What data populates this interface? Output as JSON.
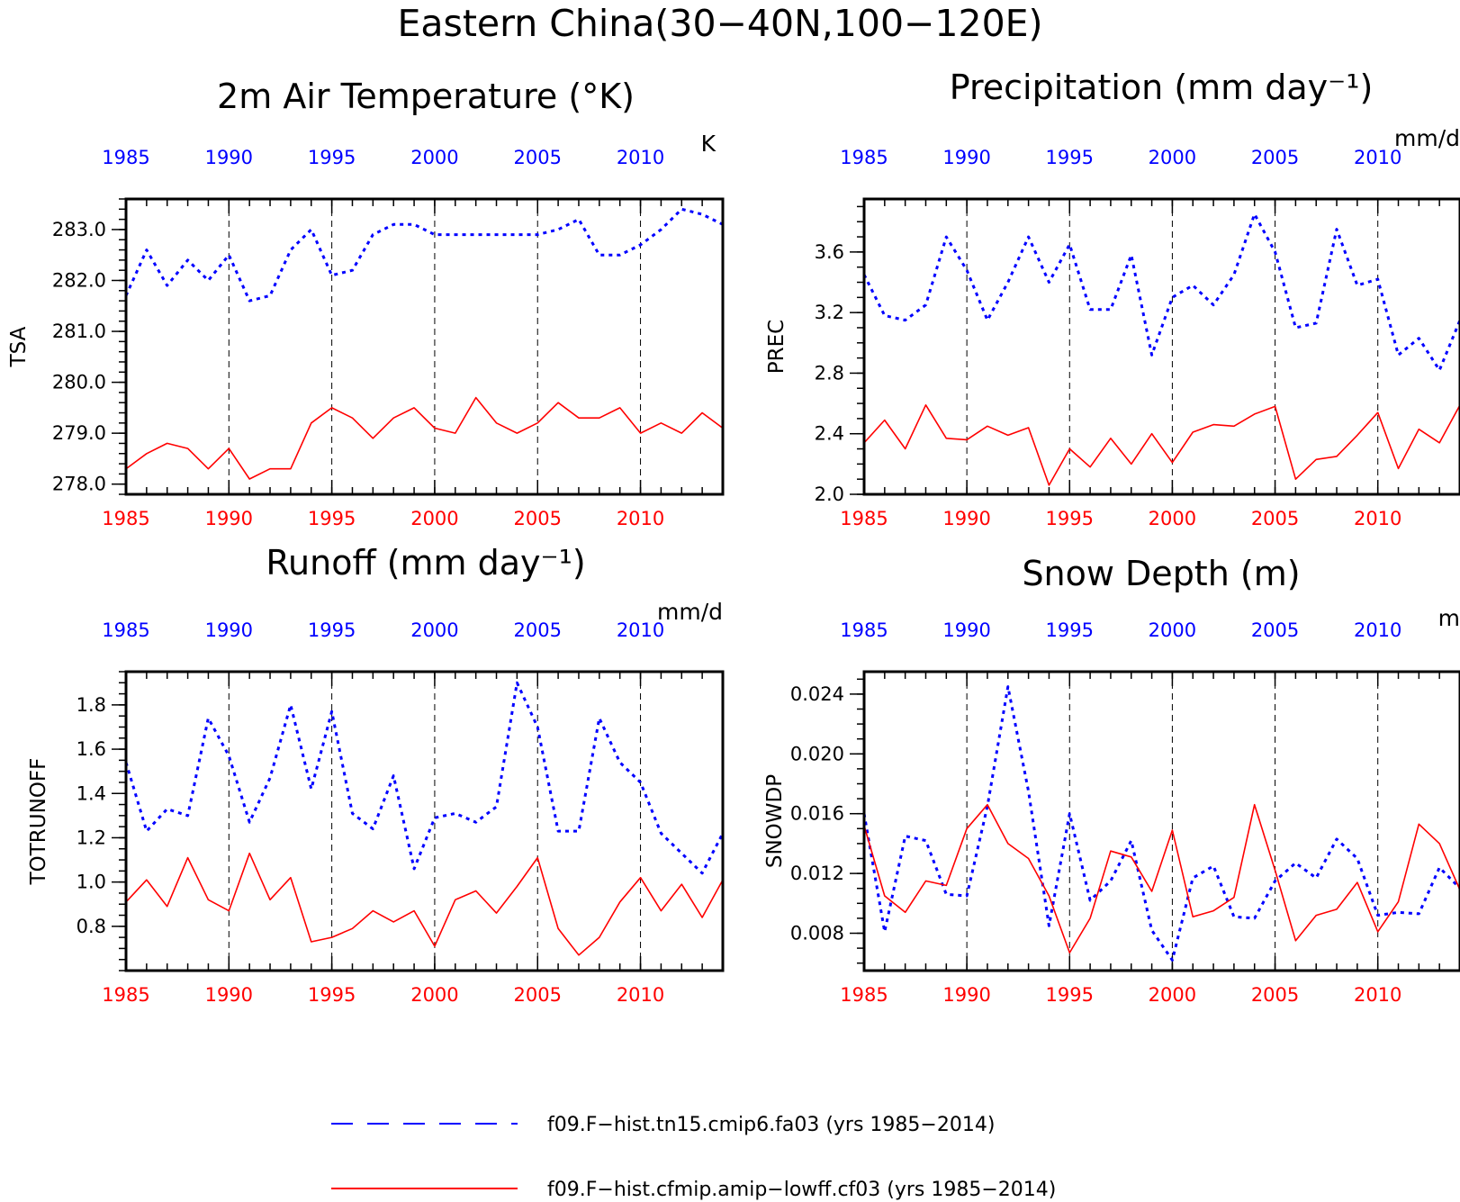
{
  "title": "Eastern China(30−40N,100−120E)",
  "colors": {
    "series_a": "#0000ff",
    "series_b": "#ff0000",
    "axis": "#000000"
  },
  "legend": {
    "items": [
      {
        "label": "f09.F−hist.tn15.cmip6.fa03 (yrs 1985−2014)",
        "color": "#0000ff",
        "style": "dashed"
      },
      {
        "label": "f09.F−hist.cfmip.amip−lowff.cf03 (yrs 1985−2014)",
        "color": "#ff0000",
        "style": "solid"
      }
    ]
  },
  "chart_data": [
    {
      "type": "line",
      "title": "2m Air Temperature (°K)",
      "ylabel": "TSA",
      "unit": "K",
      "xlim": [
        1985,
        2014
      ],
      "ylim": [
        277.8,
        283.6
      ],
      "yticks": [
        278.0,
        279.0,
        280.0,
        281.0,
        282.0,
        283.0
      ],
      "ytick_labels": [
        "278.0",
        "279.0",
        "280.0",
        "281.0",
        "282.0",
        "283.0"
      ],
      "yminor": 0.2,
      "xticks": [
        1985,
        1990,
        1995,
        2000,
        2005,
        2010
      ],
      "x": [
        1985,
        1986,
        1987,
        1988,
        1989,
        1990,
        1991,
        1992,
        1993,
        1994,
        1995,
        1996,
        1997,
        1998,
        1999,
        2000,
        2001,
        2002,
        2003,
        2004,
        2005,
        2006,
        2007,
        2008,
        2009,
        2010,
        2011,
        2012,
        2013,
        2014
      ],
      "series": [
        {
          "values": [
            281.7,
            282.6,
            281.9,
            282.4,
            282.0,
            282.5,
            281.6,
            281.7,
            282.6,
            283.0,
            282.1,
            282.2,
            282.9,
            283.1,
            283.1,
            282.9,
            282.9,
            282.9,
            282.9,
            282.9,
            282.9,
            283.0,
            283.2,
            282.5,
            282.5,
            282.7,
            283.0,
            283.4,
            283.3,
            283.1
          ]
        },
        {
          "values": [
            278.3,
            278.6,
            278.8,
            278.7,
            278.3,
            278.7,
            278.1,
            278.3,
            278.3,
            279.2,
            279.5,
            279.3,
            278.9,
            279.3,
            279.5,
            279.1,
            279.0,
            279.7,
            279.2,
            279.0,
            279.2,
            279.6,
            279.3,
            279.3,
            279.5,
            279.0,
            279.2,
            279.0,
            279.4,
            279.1
          ]
        }
      ]
    },
    {
      "type": "line",
      "title": "Precipitation (mm day⁻¹)",
      "ylabel": "PREC",
      "unit": "mm/d",
      "xlim": [
        1985,
        2014
      ],
      "ylim": [
        2.0,
        3.95
      ],
      "yticks": [
        2.0,
        2.4,
        2.8,
        3.2,
        3.6
      ],
      "ytick_labels": [
        "2.0",
        "2.4",
        "2.8",
        "3.2",
        "3.6"
      ],
      "yminor": 0.1,
      "xticks": [
        1985,
        1990,
        1995,
        2000,
        2005,
        2010
      ],
      "x": [
        1985,
        1986,
        1987,
        1988,
        1989,
        1990,
        1991,
        1992,
        1993,
        1994,
        1995,
        1996,
        1997,
        1998,
        1999,
        2000,
        2001,
        2002,
        2003,
        2004,
        2005,
        2006,
        2007,
        2008,
        2009,
        2010,
        2011,
        2012,
        2013,
        2014
      ],
      "series": [
        {
          "values": [
            3.45,
            3.18,
            3.15,
            3.25,
            3.7,
            3.48,
            3.15,
            3.4,
            3.7,
            3.4,
            3.65,
            3.22,
            3.22,
            3.58,
            2.92,
            3.3,
            3.38,
            3.25,
            3.45,
            3.85,
            3.6,
            3.1,
            3.13,
            3.75,
            3.38,
            3.42,
            2.92,
            3.03,
            2.82,
            3.15
          ]
        },
        {
          "values": [
            2.34,
            2.49,
            2.3,
            2.59,
            2.37,
            2.36,
            2.45,
            2.39,
            2.44,
            2.06,
            2.3,
            2.18,
            2.37,
            2.2,
            2.4,
            2.21,
            2.41,
            2.46,
            2.45,
            2.53,
            2.58,
            2.1,
            2.23,
            2.25,
            2.39,
            2.54,
            2.17,
            2.43,
            2.34,
            2.59
          ]
        }
      ]
    },
    {
      "type": "line",
      "title": "Runoff (mm day⁻¹)",
      "ylabel": "TOTRUNOFF",
      "unit": "mm/d",
      "xlim": [
        1985,
        2014
      ],
      "ylim": [
        0.6,
        1.95
      ],
      "yticks": [
        0.8,
        1.0,
        1.2,
        1.4,
        1.6,
        1.8
      ],
      "ytick_labels": [
        "0.8",
        "1.0",
        "1.2",
        "1.4",
        "1.6",
        "1.8"
      ],
      "yminor": 0.05,
      "xticks": [
        1985,
        1990,
        1995,
        2000,
        2005,
        2010
      ],
      "x": [
        1985,
        1986,
        1987,
        1988,
        1989,
        1990,
        1991,
        1992,
        1993,
        1994,
        1995,
        1996,
        1997,
        1998,
        1999,
        2000,
        2001,
        2002,
        2003,
        2004,
        2005,
        2006,
        2007,
        2008,
        2009,
        2010,
        2011,
        2012,
        2013,
        2014
      ],
      "series": [
        {
          "values": [
            1.54,
            1.23,
            1.33,
            1.3,
            1.74,
            1.57,
            1.27,
            1.47,
            1.8,
            1.42,
            1.77,
            1.31,
            1.24,
            1.48,
            1.06,
            1.29,
            1.31,
            1.27,
            1.34,
            1.9,
            1.7,
            1.23,
            1.23,
            1.74,
            1.54,
            1.45,
            1.22,
            1.13,
            1.04,
            1.22
          ]
        },
        {
          "values": [
            0.91,
            1.01,
            0.89,
            1.11,
            0.92,
            0.87,
            1.13,
            0.92,
            1.02,
            0.73,
            0.75,
            0.79,
            0.87,
            0.82,
            0.87,
            0.71,
            0.92,
            0.96,
            0.86,
            0.98,
            1.11,
            0.79,
            0.67,
            0.75,
            0.91,
            1.02,
            0.87,
            0.99,
            0.84,
            1.01
          ]
        }
      ]
    },
    {
      "type": "line",
      "title": "Snow Depth (m)",
      "ylabel": "SNOWDP",
      "unit": "m",
      "xlim": [
        1985,
        2014
      ],
      "ylim": [
        0.0055,
        0.0255
      ],
      "yticks": [
        0.008,
        0.012,
        0.016,
        0.02,
        0.024
      ],
      "ytick_labels": [
        "0.008",
        "0.012",
        "0.016",
        "0.020",
        "0.024"
      ],
      "yminor": 0.001,
      "xticks": [
        1985,
        1990,
        1995,
        2000,
        2005,
        2010
      ],
      "x": [
        1985,
        1986,
        1987,
        1988,
        1989,
        1990,
        1991,
        1992,
        1993,
        1994,
        1995,
        1996,
        1997,
        1998,
        1999,
        2000,
        2001,
        2002,
        2003,
        2004,
        2005,
        2006,
        2007,
        2008,
        2009,
        2010,
        2011,
        2012,
        2013,
        2014
      ],
      "series": [
        {
          "values": [
            0.016,
            0.0081,
            0.0145,
            0.0142,
            0.0106,
            0.0105,
            0.0165,
            0.0245,
            0.0175,
            0.0085,
            0.016,
            0.0102,
            0.0115,
            0.0142,
            0.0082,
            0.0062,
            0.0117,
            0.0125,
            0.0091,
            0.009,
            0.0115,
            0.0127,
            0.0117,
            0.0143,
            0.013,
            0.0092,
            0.0094,
            0.0093,
            0.0124,
            0.011
          ]
        },
        {
          "values": [
            0.0152,
            0.0105,
            0.0094,
            0.0115,
            0.0112,
            0.015,
            0.0166,
            0.014,
            0.013,
            0.0105,
            0.0067,
            0.009,
            0.0135,
            0.0131,
            0.0108,
            0.0149,
            0.0091,
            0.0095,
            0.0104,
            0.0166,
            0.0122,
            0.0075,
            0.0092,
            0.0096,
            0.0114,
            0.0081,
            0.0101,
            0.0153,
            0.014,
            0.0109
          ]
        }
      ]
    }
  ]
}
